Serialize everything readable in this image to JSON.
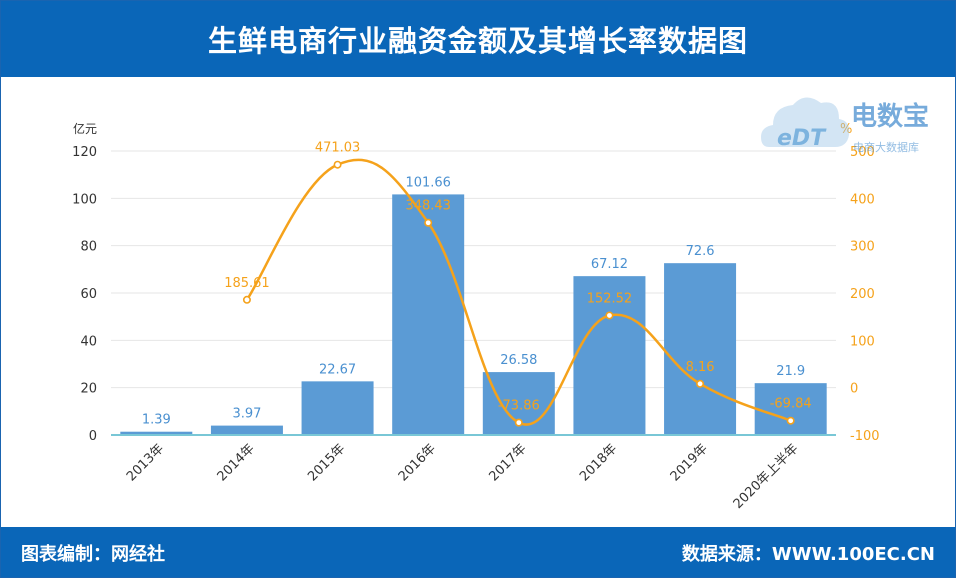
{
  "title": "生鲜电商行业融资金额及其增长率数据图",
  "footer": {
    "left": "图表编制：网经社",
    "right": "数据来源：WWW.100EC.CN"
  },
  "watermark": {
    "logo_text": "eDT",
    "brand": "电数宝",
    "tagline": "电商大数据库"
  },
  "chart_data": {
    "type": "bar",
    "categories": [
      "2013年",
      "2014年",
      "2015年",
      "2016年",
      "2017年",
      "2018年",
      "2019年",
      "2020年上半年"
    ],
    "series": [
      {
        "type": "bar",
        "axis": "left",
        "values": [
          1.39,
          3.97,
          22.67,
          101.66,
          26.58,
          67.12,
          72.6,
          21.9
        ],
        "labels": [
          "1.39",
          "3.97",
          "22.67",
          "101.66",
          "26.58",
          "67.12",
          "72.6",
          "21.9"
        ],
        "color": "#5b9bd5"
      },
      {
        "type": "line",
        "axis": "right",
        "values": [
          null,
          185.61,
          471.03,
          348.43,
          -73.86,
          152.52,
          8.16,
          -69.84
        ],
        "labels": [
          "",
          "185.61",
          "471.03",
          "348.43",
          "-73.86",
          "152.52",
          "8.16",
          "-69.84"
        ],
        "color": "#f5a21b"
      }
    ],
    "y_left": {
      "unit": "亿元",
      "min": 0,
      "max": 120,
      "ticks": [
        0,
        20,
        40,
        60,
        80,
        100,
        120
      ]
    },
    "y_right": {
      "unit": "%",
      "min": -100,
      "max": 500,
      "ticks": [
        -100,
        0,
        100,
        200,
        300,
        400,
        500
      ]
    },
    "grid": true,
    "legend": "none"
  }
}
